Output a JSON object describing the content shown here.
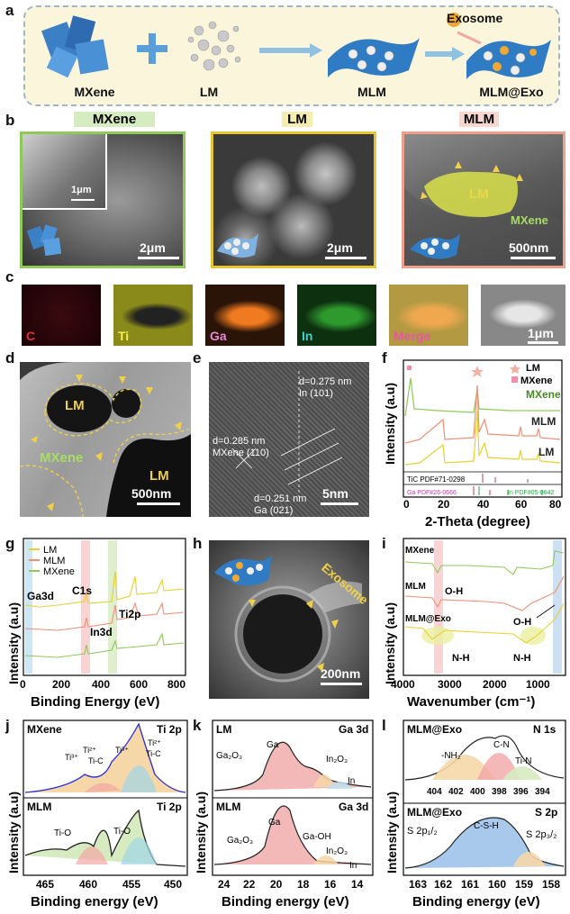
{
  "panels": {
    "a": "a",
    "b": "b",
    "c": "c",
    "d": "d",
    "e": "e",
    "f": "f",
    "g": "g",
    "h": "h",
    "i": "i",
    "j": "j",
    "k": "k",
    "l": "l"
  },
  "scheme": {
    "mxene": "MXene",
    "lm": "LM",
    "mlm": "MLM",
    "mlm_exo": "MLM@Exo",
    "exosome": "Exosome"
  },
  "sem": {
    "mxene_title": "MXene",
    "lm_title": "LM",
    "mlm_title": "MLM",
    "inset_scale": "1μm",
    "mxene_scale": "2μm",
    "lm_scale": "2μm",
    "mlm_scale": "500nm",
    "mlm_lm_label": "LM",
    "mlm_mxene_label": "MXene",
    "colors": {
      "mxene": "#8fc95a",
      "lm": "#e7c431",
      "mlm": "#ef9f8a"
    }
  },
  "eds": {
    "c": "C",
    "ti": "Ti",
    "ga": "Ga",
    "in": "In",
    "merge": "Merge",
    "scale": "1μm"
  },
  "tem_d": {
    "lm1": "LM",
    "lm2": "LM",
    "mxene": "MXene",
    "scale": "500nm"
  },
  "hrtem_e": {
    "d1": "d=0.275 nm",
    "d1b": "In (101)",
    "d2": "d=0.285 nm",
    "d2b": "MXene (110)",
    "d3": "d=0.251 nm",
    "d3b": "Ga (021)",
    "scale": "5nm"
  },
  "xrd_f": {
    "ylabel": "Intensity (a.u)",
    "xlabel": "2-Theta (degree)",
    "ticks": [
      "0",
      "20",
      "40",
      "60",
      "80"
    ],
    "legend_lm": "LM",
    "legend_mxene": "MXene",
    "s_mxene": "MXene",
    "s_mlm": "MLM",
    "s_lm": "LM",
    "ref_tic": "TiC PDF#71-0298",
    "ref_ga": "Ga PDF#26-0666",
    "ref_in": "In PDF#05-0642"
  },
  "xps_g": {
    "ylabel": "Intensity (a.u)",
    "xlabel": "Binding Energy (eV)",
    "ticks": [
      "0",
      "200",
      "400",
      "600",
      "800"
    ],
    "legend": [
      "LM",
      "MLM",
      "MXene"
    ],
    "ga3d": "Ga3d",
    "c1s": "C1s",
    "in3d": "In3d",
    "ti2p": "Ti2p"
  },
  "tem_h": {
    "exosome": "Exosome",
    "scale": "200nm"
  },
  "ftir_i": {
    "ylabel": "Intensity (a.u)",
    "xlabel": "Wavenumber (cm⁻¹)",
    "ticks": [
      "4000",
      "3000",
      "2000",
      "1000"
    ],
    "mxene": "MXene",
    "mlm": "MLM",
    "mlm_exo": "MLM@Exo",
    "oh1": "O-H",
    "oh2": "O-H",
    "nh1": "N-H",
    "nh2": "N-H"
  },
  "ti2p_j": {
    "ylabel": "Intensity (a.u)",
    "xlabel": "Binding energy (eV)",
    "ticks": [
      "465",
      "460",
      "455",
      "450"
    ],
    "top_name": "MXene",
    "top_el": "Ti 2p",
    "bot_name": "MLM",
    "bot_el": "Ti 2p",
    "ti3a": "Ti³⁺",
    "ti2a": "Ti²⁺",
    "tic1": "Ti-C",
    "ti3b": "Ti³⁺",
    "ti2b": "Ti²⁺",
    "tic2": "Ti-C",
    "tio1": "Ti-O",
    "tio2": "Ti-O"
  },
  "ga3d_k": {
    "ylabel": "Intensity (a.u)",
    "xlabel": "Binding energy (eV)",
    "ticks": [
      "24",
      "22",
      "20",
      "18",
      "16",
      "14"
    ],
    "top_name": "LM",
    "top_el": "Ga 3d",
    "bot_name": "MLM",
    "bot_el": "Ga 3d",
    "ga2o3": "Ga₂O₃",
    "ga": "Ga",
    "in2o3": "In₂O₃",
    "in": "In",
    "ga2o3b": "Ga₂O₃",
    "gab": "Ga",
    "gaoh": "Ga-OH",
    "in2o3b": "In₂O₃",
    "inb": "In"
  },
  "xps_l": {
    "ylabel": "Intensity (a.u)",
    "xlabel": "Binding energy (eV)",
    "top_ticks": [
      "404",
      "402",
      "400",
      "398",
      "396",
      "394"
    ],
    "ticks": [
      "163",
      "162",
      "161",
      "160",
      "159",
      "158"
    ],
    "top_name": "MLM@Exo",
    "top_el": "N 1s",
    "bot_name": "MLM@Exo",
    "bot_el": "S 2p",
    "nh2": "-NH₂",
    "cn": "C-N",
    "tin": "Ti-N",
    "s2p12": "S 2p₁/₂",
    "csh": "C-S-H",
    "s2p32": "S 2p₃/₂"
  }
}
